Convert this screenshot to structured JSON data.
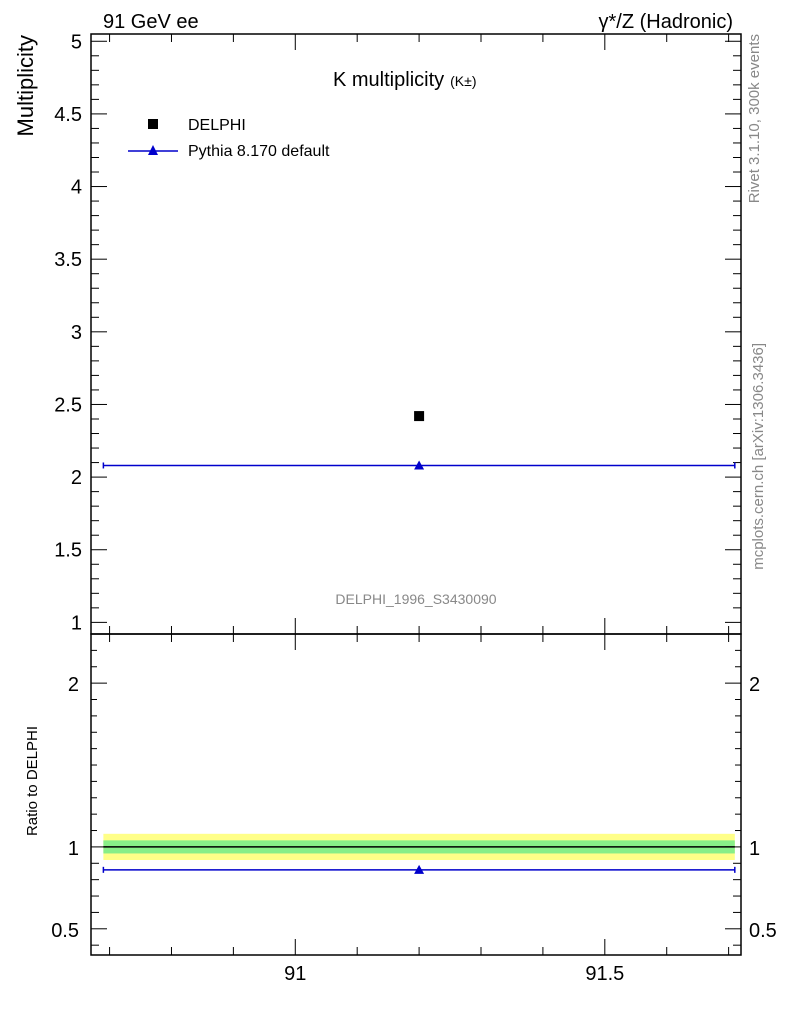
{
  "header": {
    "left": "91 GeV ee",
    "right": "γ*/Z (Hadronic)"
  },
  "side_labels": {
    "rivet": "Rivet 3.1.10,  300k events",
    "mcplots": "mcplots.cern.ch [arXiv:1306.3436]"
  },
  "watermark": "DELPHI_1996_S3430090",
  "chart_data": [
    {
      "type": "scatter",
      "title": "K multiplicity",
      "title_sub": "(K±)",
      "ylabel": "Multiplicity",
      "xlim": [
        90.67,
        91.72
      ],
      "ylim": [
        0.92,
        5.05
      ],
      "yticks": [
        1,
        1.5,
        2,
        2.5,
        3,
        3.5,
        4,
        4.5,
        5
      ],
      "ytick_labels": [
        "1",
        "1.5",
        "2",
        "2.5",
        "3",
        "3.5",
        "4",
        "4.5",
        "5"
      ],
      "legend_placement": "top-left",
      "series": [
        {
          "name": "DELPHI",
          "marker": "square",
          "color": "#000000",
          "points": [
            {
              "x": 91.2,
              "y": 2.42
            }
          ]
        },
        {
          "name": "Pythia 8.170 default",
          "marker": "triangle",
          "color": "#0000cc",
          "points": [
            {
              "x": 91.2,
              "y": 2.08
            }
          ],
          "x_extent": [
            90.69,
            91.71
          ]
        }
      ]
    },
    {
      "type": "line",
      "ylabel": "Ratio to DELPHI",
      "xlim": [
        90.67,
        91.72
      ],
      "ylim": [
        0.34,
        2.3
      ],
      "yticks": [
        0.5,
        1,
        2
      ],
      "ytick_labels": [
        "0.5",
        "1",
        "2"
      ],
      "xticks": [
        91,
        91.5
      ],
      "xtick_labels": [
        "91",
        "91.5"
      ],
      "bands": [
        {
          "kind": "total",
          "color": "#ffff88",
          "lo": 0.92,
          "hi": 1.08
        },
        {
          "kind": "stat",
          "color": "#88ee88",
          "lo": 0.96,
          "hi": 1.04
        }
      ],
      "reference": 1.0,
      "series": [
        {
          "name": "Pythia 8.170 default",
          "marker": "triangle",
          "color": "#0000cc",
          "points": [
            {
              "x": 91.2,
              "y": 0.86
            }
          ],
          "x_extent": [
            90.69,
            91.71
          ]
        }
      ]
    }
  ]
}
